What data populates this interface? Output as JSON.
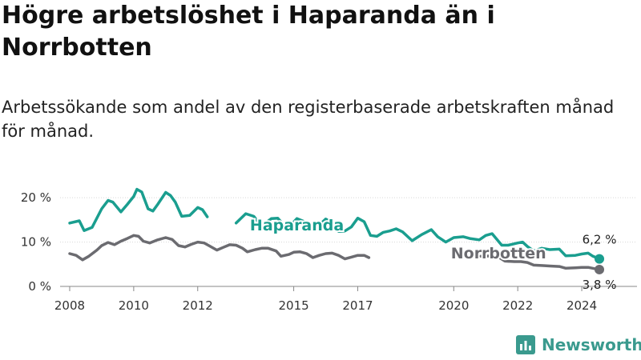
{
  "title": "Högre arbetslöshet i Haparanda än i Norrbotten",
  "subtitle": "Arbetssökande som andel av den registerbaserade arbetskraften månad för månad.",
  "brand": {
    "name": "Newsworthy",
    "color": "#3a9a8e",
    "icon": "bar-chart-logo-icon"
  },
  "chart_data": {
    "type": "line",
    "x_unit": "year",
    "xlim": [
      2007.7,
      2025.1
    ],
    "ylim": [
      0,
      24
    ],
    "y_ticks": [
      {
        "value": 0,
        "label": "0 %"
      },
      {
        "value": 10,
        "label": "10 %"
      },
      {
        "value": 20,
        "label": "20 %"
      }
    ],
    "x_ticks": [
      {
        "value": 2008,
        "label": "2008"
      },
      {
        "value": 2010,
        "label": "2010"
      },
      {
        "value": 2012,
        "label": "2012"
      },
      {
        "value": 2015,
        "label": "2015"
      },
      {
        "value": 2017,
        "label": "2017"
      },
      {
        "value": 2020,
        "label": "2020"
      },
      {
        "value": 2022,
        "label": "2022"
      },
      {
        "value": 2024,
        "label": "2024"
      }
    ],
    "grid": "horizontal",
    "series": [
      {
        "name": "Haparanda",
        "color": "#1a9e8f",
        "end_label": "6,2 %",
        "points": [
          [
            2008.0,
            14.3
          ],
          [
            2008.3,
            14.8
          ],
          [
            2008.45,
            12.6
          ],
          [
            2008.7,
            13.3
          ],
          [
            2009.0,
            17.5
          ],
          [
            2009.2,
            19.4
          ],
          [
            2009.35,
            19.0
          ],
          [
            2009.6,
            16.8
          ],
          [
            2009.8,
            18.5
          ],
          [
            2010.0,
            20.3
          ],
          [
            2010.1,
            21.9
          ],
          [
            2010.25,
            21.3
          ],
          [
            2010.45,
            17.5
          ],
          [
            2010.6,
            17.0
          ],
          [
            2010.75,
            18.5
          ],
          [
            2011.0,
            21.2
          ],
          [
            2011.15,
            20.5
          ],
          [
            2011.3,
            19.0
          ],
          [
            2011.5,
            15.8
          ],
          [
            2011.75,
            16.0
          ],
          [
            2012.0,
            17.8
          ],
          [
            2012.15,
            17.3
          ],
          [
            2012.3,
            15.7
          ]
        ],
        "points_2": [
          [
            2013.2,
            14.3
          ],
          [
            2013.5,
            16.4
          ],
          [
            2013.75,
            15.8
          ],
          [
            2014.0,
            13.6
          ],
          [
            2014.3,
            15.3
          ],
          [
            2014.5,
            15.4
          ],
          [
            2014.8,
            13.0
          ],
          [
            2015.1,
            15.3
          ],
          [
            2015.3,
            14.7
          ],
          [
            2015.5,
            12.6
          ],
          [
            2015.75,
            13.5
          ],
          [
            2016.0,
            15.2
          ],
          [
            2016.2,
            14.5
          ],
          [
            2016.4,
            12.4
          ],
          [
            2016.6,
            12.5
          ],
          [
            2016.8,
            13.4
          ],
          [
            2017.0,
            15.4
          ],
          [
            2017.2,
            14.6
          ],
          [
            2017.4,
            11.5
          ],
          [
            2017.6,
            11.3
          ],
          [
            2017.8,
            12.2
          ],
          [
            2018.0,
            12.5
          ],
          [
            2018.2,
            13.0
          ],
          [
            2018.4,
            12.3
          ],
          [
            2018.7,
            10.3
          ],
          [
            2019.0,
            11.7
          ],
          [
            2019.3,
            12.8
          ],
          [
            2019.5,
            11.2
          ],
          [
            2019.75,
            10.0
          ],
          [
            2020.0,
            11.0
          ],
          [
            2020.3,
            11.2
          ],
          [
            2020.5,
            10.8
          ],
          [
            2020.8,
            10.5
          ],
          [
            2021.0,
            11.5
          ],
          [
            2021.2,
            11.9
          ],
          [
            2021.5,
            9.3
          ],
          [
            2021.7,
            9.3
          ],
          [
            2022.0,
            9.8
          ],
          [
            2022.15,
            10.0
          ],
          [
            2022.3,
            9.0
          ],
          [
            2022.5,
            8.0
          ],
          [
            2022.75,
            8.6
          ],
          [
            2023.0,
            8.3
          ],
          [
            2023.3,
            8.4
          ],
          [
            2023.5,
            6.9
          ],
          [
            2023.8,
            7.0
          ],
          [
            2024.0,
            7.3
          ],
          [
            2024.2,
            7.5
          ],
          [
            2024.35,
            6.8
          ],
          [
            2024.55,
            6.2
          ]
        ]
      },
      {
        "name": "Norrbotten",
        "color": "#6b6b70",
        "end_label": "3,8 %",
        "points": [
          [
            2008.0,
            7.4
          ],
          [
            2008.2,
            7.0
          ],
          [
            2008.4,
            6.0
          ],
          [
            2008.6,
            6.8
          ],
          [
            2008.85,
            8.2
          ],
          [
            2009.0,
            9.2
          ],
          [
            2009.2,
            9.9
          ],
          [
            2009.4,
            9.4
          ],
          [
            2009.6,
            10.2
          ],
          [
            2009.8,
            10.8
          ],
          [
            2010.0,
            11.5
          ],
          [
            2010.15,
            11.3
          ],
          [
            2010.3,
            10.2
          ],
          [
            2010.5,
            9.8
          ],
          [
            2010.75,
            10.5
          ],
          [
            2011.0,
            11.0
          ],
          [
            2011.2,
            10.6
          ],
          [
            2011.4,
            9.2
          ],
          [
            2011.6,
            8.9
          ],
          [
            2011.8,
            9.5
          ],
          [
            2012.0,
            10.0
          ],
          [
            2012.2,
            9.8
          ],
          [
            2012.4,
            9.0
          ],
          [
            2012.6,
            8.2
          ],
          [
            2012.8,
            8.8
          ],
          [
            2013.0,
            9.4
          ],
          [
            2013.2,
            9.3
          ],
          [
            2013.4,
            8.6
          ],
          [
            2013.55,
            7.8
          ],
          [
            2013.8,
            8.3
          ],
          [
            2014.0,
            8.6
          ],
          [
            2014.2,
            8.6
          ],
          [
            2014.45,
            8.0
          ],
          [
            2014.6,
            6.8
          ],
          [
            2014.85,
            7.2
          ],
          [
            2015.0,
            7.7
          ],
          [
            2015.2,
            7.8
          ],
          [
            2015.4,
            7.4
          ],
          [
            2015.6,
            6.5
          ],
          [
            2015.8,
            7.0
          ],
          [
            2016.0,
            7.4
          ],
          [
            2016.2,
            7.5
          ],
          [
            2016.4,
            7.0
          ],
          [
            2016.6,
            6.2
          ],
          [
            2016.8,
            6.6
          ],
          [
            2017.0,
            7.0
          ],
          [
            2017.2,
            7.0
          ],
          [
            2017.35,
            6.5
          ]
        ],
        "points_2": [
          [
            2020.85,
            6.8
          ],
          [
            2021.0,
            6.8
          ],
          [
            2021.2,
            6.9
          ],
          [
            2021.4,
            6.6
          ],
          [
            2021.6,
            5.7
          ],
          [
            2021.9,
            5.6
          ],
          [
            2022.1,
            5.6
          ],
          [
            2022.3,
            5.4
          ],
          [
            2022.5,
            4.8
          ],
          [
            2022.8,
            4.7
          ],
          [
            2023.0,
            4.6
          ],
          [
            2023.3,
            4.5
          ],
          [
            2023.5,
            4.1
          ],
          [
            2023.8,
            4.2
          ],
          [
            2024.0,
            4.3
          ],
          [
            2024.2,
            4.3
          ],
          [
            2024.4,
            4.0
          ],
          [
            2024.55,
            3.8
          ]
        ]
      }
    ],
    "annotations": [
      {
        "text": "Haparanda",
        "x": 2015.1,
        "y": 12.6,
        "color": "#1a9e8f"
      },
      {
        "text": "Norrbotten",
        "x": 2021.4,
        "y": 6.3,
        "color": "#6b6b70"
      }
    ]
  }
}
